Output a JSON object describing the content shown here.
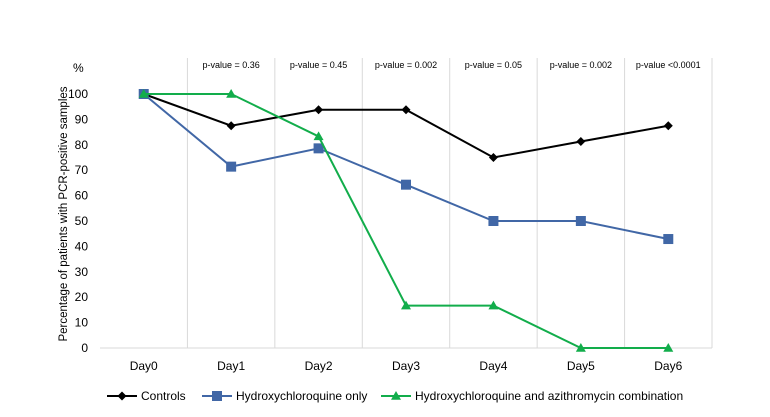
{
  "chart_data": {
    "type": "line",
    "ylabel": "Percentage of patients with PCR-positive samples",
    "y_unit": "%",
    "ylim": [
      0,
      100
    ],
    "yticks": [
      0,
      10,
      20,
      30,
      40,
      50,
      60,
      70,
      80,
      90,
      100
    ],
    "categories": [
      "Day0",
      "Day1",
      "Day2",
      "Day3",
      "Day4",
      "Day5",
      "Day6"
    ],
    "p_values": [
      "p-value = 0.36",
      "p-value = 0.45",
      "p-value = 0.002",
      "p-value = 0.05",
      "p-value = 0.002",
      "p-value <0.0001"
    ],
    "grid": "vertical",
    "legend_position": "bottom",
    "series": [
      {
        "name": "Controls",
        "color": "#000000",
        "marker": "diamond",
        "values": [
          100,
          87.5,
          93.8,
          93.8,
          75,
          81.3,
          87.5
        ]
      },
      {
        "name": "Hydroxychloroquine only",
        "color": "#4167a6",
        "marker": "square",
        "values": [
          100,
          71.4,
          78.6,
          64.3,
          50,
          50,
          42.9
        ]
      },
      {
        "name": "Hydroxychloroquine and azithromycin combination",
        "color": "#12ad4b",
        "marker": "triangle",
        "values": [
          100,
          100,
          83.3,
          16.7,
          16.7,
          0,
          0
        ]
      }
    ]
  }
}
